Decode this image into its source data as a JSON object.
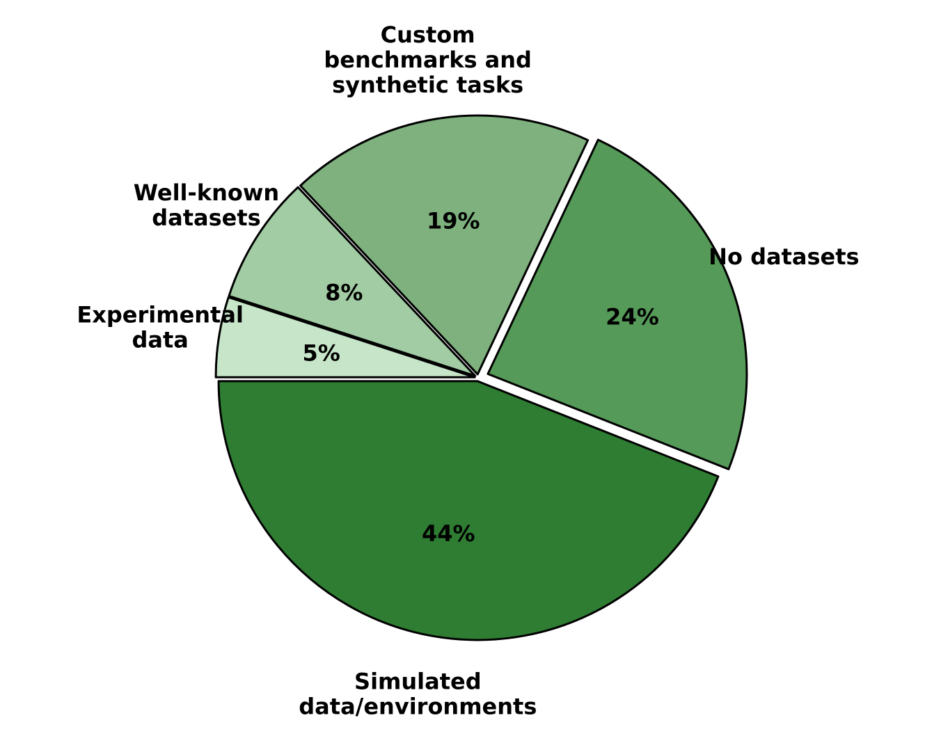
{
  "chart_data": {
    "type": "pie",
    "title": "",
    "slices": [
      {
        "label": "Simulated\ndata/environments",
        "value": 44,
        "value_label": "44%",
        "color": "#2e7d32",
        "exploded": false
      },
      {
        "label": "No datasets",
        "value": 24,
        "value_label": "24%",
        "color": "#559a58",
        "exploded": true
      },
      {
        "label": "Custom\nbenchmarks and\nsynthetic tasks",
        "value": 19,
        "value_label": "19%",
        "color": "#7eb17e",
        "exploded": false
      },
      {
        "label": "Well-known\ndatasets",
        "value": 8,
        "value_label": "8%",
        "color": "#a2cca4",
        "exploded": false
      },
      {
        "label": "Experimental\ndata",
        "value": 5,
        "value_label": "5%",
        "color": "#c7e5c8",
        "exploded": false
      }
    ],
    "start_angle": "180 degrees (left)",
    "direction": "counter-clockwise",
    "edge_color": "#000000",
    "legend": "none"
  }
}
